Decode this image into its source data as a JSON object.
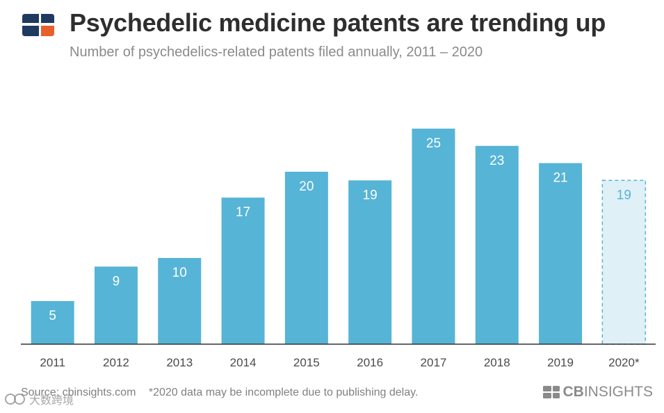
{
  "header": {
    "title": "Psychedelic medicine patents are trending up",
    "subtitle": "Number of psychedelics-related patents filed annually, 2011 – 2020"
  },
  "footer": {
    "source": "Source: cbinsights.com",
    "note": "*2020 data may be incomplete due to publishing delay."
  },
  "brand": {
    "prefix": "CB",
    "suffix": "INSIGHTS"
  },
  "watermark": "大数跨境",
  "colors": {
    "bar": "#56b4d6",
    "bar_incomplete_fill": "#dff0f7",
    "bar_incomplete_stroke": "#56b4d6",
    "bar_label": "#ffffff",
    "bar_label_incomplete": "#56b4d6",
    "baseline": "#333333",
    "logo_dark": "#1f3a5f",
    "logo_accent": "#e8602c"
  },
  "chart_data": {
    "type": "bar",
    "categories": [
      "2011",
      "2012",
      "2013",
      "2014",
      "2015",
      "2016",
      "2017",
      "2018",
      "2019",
      "2020*"
    ],
    "values": [
      5,
      9,
      10,
      17,
      20,
      19,
      25,
      23,
      21,
      19
    ],
    "data_labels": [
      "5",
      "9",
      "10",
      "17",
      "20",
      "19",
      "25",
      "23",
      "21",
      "19"
    ],
    "incomplete": [
      false,
      false,
      false,
      false,
      false,
      false,
      false,
      false,
      false,
      true
    ],
    "title": "Psychedelic medicine patents are trending up",
    "xlabel": "",
    "ylabel": "",
    "ylim": [
      0,
      25
    ],
    "grid": false,
    "legend": "none"
  }
}
